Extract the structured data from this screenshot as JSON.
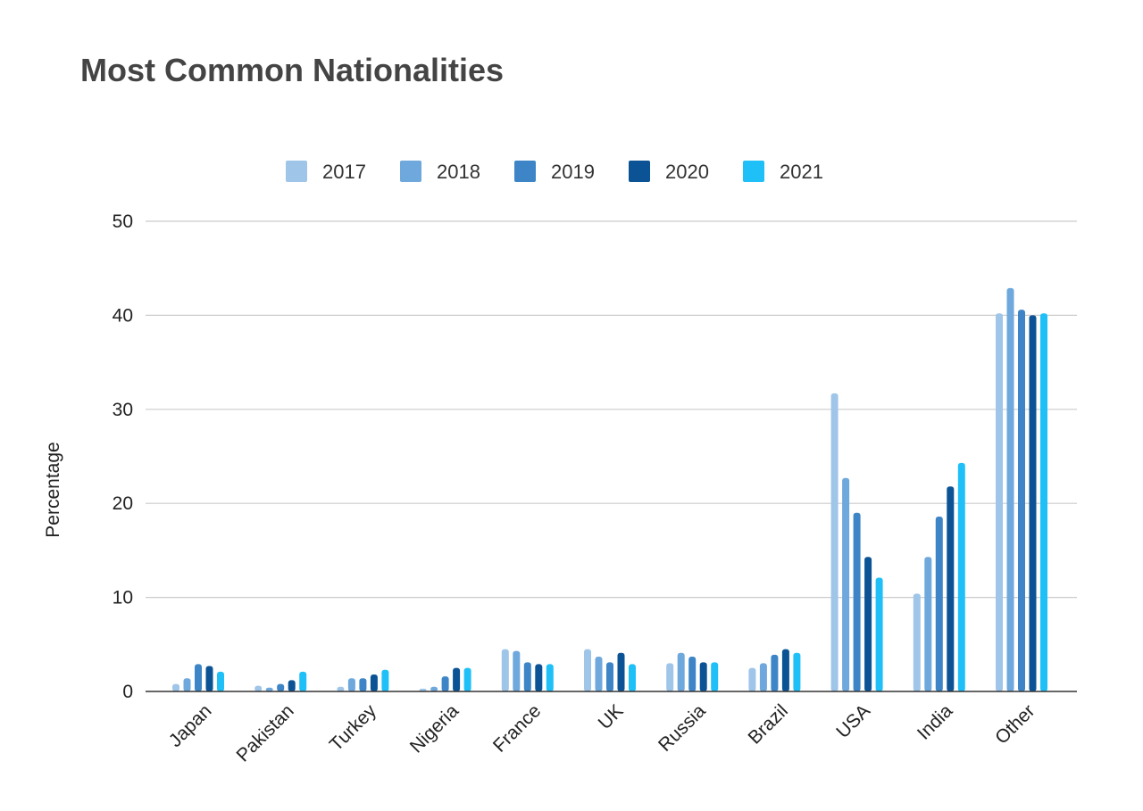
{
  "chart_data": {
    "type": "bar",
    "title": "Most Common Nationalities",
    "xlabel": "",
    "ylabel": "Percentage",
    "ylim": [
      0,
      50
    ],
    "yticks": [
      "0",
      "10",
      "20",
      "30",
      "40",
      "50"
    ],
    "grid": true,
    "legend_position": "top",
    "categories": [
      "Japan",
      "Pakistan",
      "Turkey",
      "Nigeria",
      "France",
      "UK",
      "Russia",
      "Brazil",
      "USA",
      "India",
      "Other"
    ],
    "series": [
      {
        "name": "2017",
        "color": "#9fc5e8",
        "values": [
          0.8,
          0.6,
          0.5,
          0.3,
          4.5,
          4.5,
          3.0,
          2.5,
          31.7,
          10.4,
          40.2
        ]
      },
      {
        "name": "2018",
        "color": "#6fa8dc",
        "values": [
          1.4,
          0.4,
          1.4,
          0.5,
          4.3,
          3.7,
          4.1,
          3.0,
          22.7,
          14.3,
          42.9
        ]
      },
      {
        "name": "2019",
        "color": "#3d85c6",
        "values": [
          2.9,
          0.8,
          1.4,
          1.6,
          3.1,
          3.1,
          3.7,
          3.9,
          19.0,
          18.6,
          40.6
        ]
      },
      {
        "name": "2020",
        "color": "#0b5394",
        "values": [
          2.7,
          1.2,
          1.8,
          2.5,
          2.9,
          4.1,
          3.1,
          4.5,
          14.3,
          21.8,
          40.0
        ]
      },
      {
        "name": "2021",
        "color": "#1fc0f8",
        "values": [
          2.1,
          2.1,
          2.3,
          2.5,
          2.9,
          2.9,
          3.1,
          4.1,
          12.1,
          24.3,
          40.2
        ]
      }
    ]
  }
}
